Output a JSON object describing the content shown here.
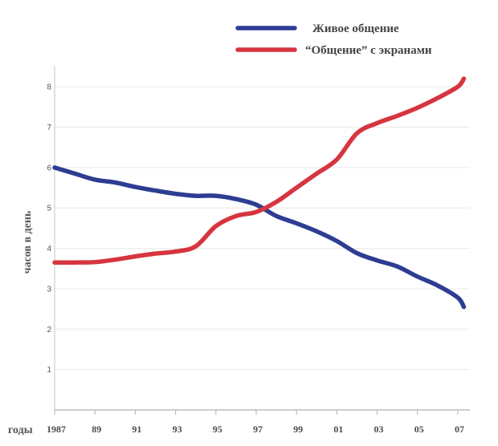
{
  "chart_data": {
    "type": "line",
    "title": "",
    "xlabel": "годы",
    "ylabel": "часов в день",
    "x": [
      1987,
      1988,
      1989,
      1990,
      1991,
      1992,
      1993,
      1994,
      1995,
      1996,
      1997,
      1998,
      1999,
      2000,
      2001,
      2002,
      2003,
      2004,
      2005,
      2006,
      2007,
      2007.3
    ],
    "x_ticks": [
      1987,
      1989,
      1991,
      1993,
      1995,
      1997,
      1999,
      2001,
      2003,
      2005,
      2007
    ],
    "x_tick_labels": [
      "1987",
      "89",
      "91",
      "93",
      "95",
      "97",
      "99",
      "01",
      "03",
      "05",
      "07"
    ],
    "xlim": [
      1987,
      2007.6
    ],
    "ylim": [
      0,
      8.4
    ],
    "y_ticks": [
      1,
      2,
      3,
      4,
      5,
      6,
      7,
      8
    ],
    "grid": true,
    "legend_position": "top-right",
    "series": [
      {
        "name": "Живое общение",
        "color": "#2e3d92",
        "values": [
          6.0,
          5.85,
          5.7,
          5.63,
          5.52,
          5.43,
          5.35,
          5.3,
          5.3,
          5.22,
          5.08,
          4.8,
          4.62,
          4.42,
          4.18,
          3.88,
          3.7,
          3.55,
          3.3,
          3.08,
          2.78,
          2.55
        ]
      },
      {
        "name": "“Общение” с экранами",
        "color": "#d63540",
        "values": [
          3.65,
          3.65,
          3.66,
          3.72,
          3.8,
          3.87,
          3.92,
          4.05,
          4.55,
          4.8,
          4.9,
          5.15,
          5.5,
          5.85,
          6.2,
          6.85,
          7.1,
          7.28,
          7.48,
          7.72,
          8.0,
          8.2
        ]
      }
    ]
  }
}
